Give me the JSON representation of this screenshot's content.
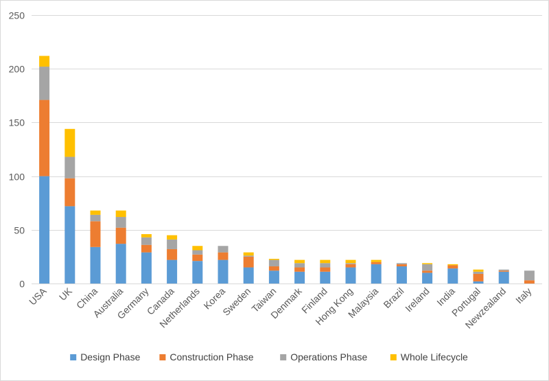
{
  "chart_data": {
    "type": "bar",
    "stacked": true,
    "categories": [
      "USA",
      "UK",
      "China",
      "Australia",
      "Germany",
      "Canada",
      "Netherlands",
      "Korea",
      "Sweden",
      "Taiwan",
      "Denmark",
      "Finland",
      "Hong Kong",
      "Malaysia",
      "Brazil",
      "Ireland",
      "India",
      "Portugal",
      "Newzealand",
      "Italy"
    ],
    "series": [
      {
        "name": "Design Phase",
        "color": "#5b9bd5",
        "values": [
          100,
          72,
          34,
          37,
          29,
          22,
          21,
          22,
          15,
          12,
          11,
          11,
          15,
          18,
          16,
          10,
          14,
          2,
          11,
          0
        ]
      },
      {
        "name": "Construction Phase",
        "color": "#ed7d31",
        "values": [
          71,
          26,
          24,
          15,
          7,
          10,
          6,
          7,
          10,
          4,
          4,
          4,
          3,
          2,
          2,
          2,
          3,
          7,
          1,
          3
        ]
      },
      {
        "name": "Operations Phase",
        "color": "#a5a5a5",
        "values": [
          31,
          20,
          6,
          10,
          7,
          9,
          4,
          6,
          1,
          6,
          4,
          4,
          1,
          0,
          1,
          6,
          0,
          2,
          1,
          9
        ]
      },
      {
        "name": "Whole Lifecycle",
        "color": "#ffc000",
        "values": [
          10,
          26,
          4,
          6,
          3,
          4,
          4,
          0,
          3,
          1,
          3,
          3,
          3,
          2,
          0,
          1,
          1,
          2,
          0,
          0
        ]
      }
    ],
    "ylim": [
      0,
      250
    ],
    "yticks": [
      0,
      50,
      100,
      150,
      200,
      250
    ],
    "grid": true,
    "legend": "bottom",
    "gridColor": "#d9d9d9",
    "textColor": "#595959"
  }
}
